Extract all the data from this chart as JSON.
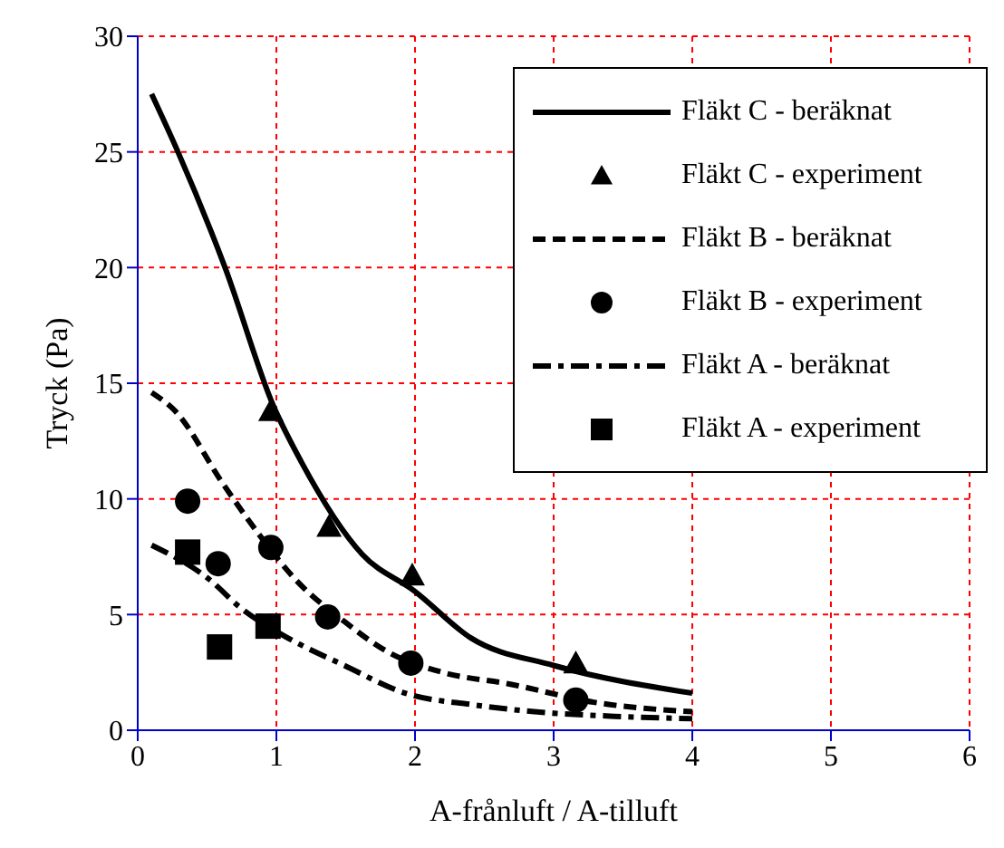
{
  "chart_data": {
    "type": "line",
    "xlabel": "A-frånluft / A-tilluft",
    "ylabel": "Tryck (Pa)",
    "xlim": [
      0,
      6
    ],
    "xticks": [
      0,
      1,
      2,
      3,
      4,
      5,
      6
    ],
    "ylim": [
      0,
      30
    ],
    "yticks": [
      0,
      5,
      10,
      15,
      20,
      25,
      30
    ],
    "grid": true,
    "legend": "top right",
    "series": [
      {
        "name": "Fläkt C - beräknat",
        "line_style": "solid",
        "marker": "none",
        "color": "#000000",
        "x": [
          0.1,
          0.29,
          0.63,
          0.98,
          1.18,
          1.62,
          2.0,
          2.4,
          3.0,
          4.0
        ],
        "values": [
          27.5,
          25,
          20,
          14,
          11.6,
          7.6,
          6.0,
          4.0,
          2.8,
          1.6
        ]
      },
      {
        "name": "Fläkt C - experiment",
        "type": "scatter",
        "marker": "triangle",
        "color": "#000000",
        "x": [
          0.96,
          1.38,
          1.98,
          3.16
        ],
        "values": [
          13.8,
          8.8,
          6.7,
          2.9
        ]
      },
      {
        "name": "Fläkt B - beräknat",
        "line_style": "dashed",
        "marker": "none",
        "color": "#000000",
        "x": [
          0.1,
          0.27,
          0.61,
          0.87,
          1.14,
          1.49,
          1.8,
          2.2,
          2.68,
          3.3,
          4.0
        ],
        "values": [
          14.6,
          13.8,
          10.7,
          8.5,
          6.5,
          4.7,
          3.4,
          2.5,
          2.0,
          1.2,
          0.8
        ]
      },
      {
        "name": "Fläkt B - experiment",
        "type": "scatter",
        "marker": "circle",
        "color": "#000000",
        "x": [
          0.36,
          0.58,
          0.96,
          1.37,
          1.97,
          3.16
        ],
        "values": [
          9.9,
          7.2,
          7.9,
          4.9,
          2.9,
          1.3
        ]
      },
      {
        "name": "Fläkt A - beräknat",
        "line_style": "dashdot",
        "marker": "none",
        "color": "#000000",
        "x": [
          0.1,
          0.52,
          0.74,
          1.05,
          1.49,
          1.93,
          2.42,
          2.86,
          3.44,
          4.0
        ],
        "values": [
          8.0,
          6.5,
          5.3,
          4.1,
          2.8,
          1.6,
          1.1,
          0.8,
          0.6,
          0.5
        ]
      },
      {
        "name": "Fläkt A - experiment",
        "type": "scatter",
        "marker": "square",
        "color": "#000000",
        "x": [
          0.36,
          0.59,
          0.94
        ],
        "values": [
          7.7,
          3.6,
          4.5
        ]
      }
    ]
  }
}
